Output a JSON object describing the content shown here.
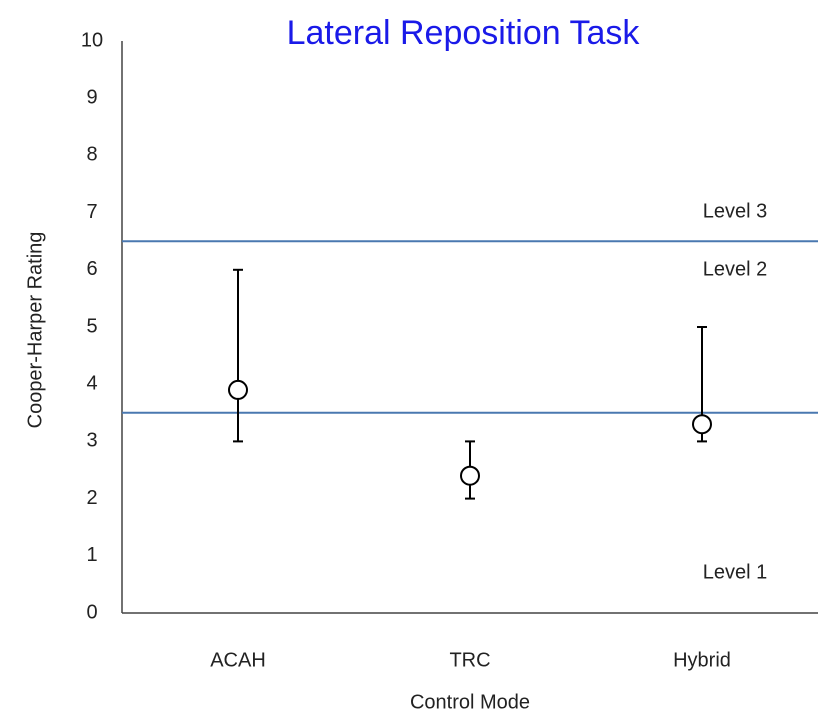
{
  "chart_data": {
    "type": "errorbar",
    "title": "Lateral Reposition Task",
    "x_label": "Control Mode",
    "y_label": "Cooper-Harper Rating",
    "categories": [
      "ACAH",
      "TRC",
      "Hybrid"
    ],
    "series": [
      {
        "values": [
          3.9,
          2.4,
          3.3
        ],
        "low": [
          3,
          2,
          3
        ],
        "high": [
          6,
          3,
          5
        ],
        "color": "#000000"
      }
    ],
    "ylim": [
      0,
      10
    ],
    "yticks": [
      0,
      1,
      2,
      3,
      4,
      5,
      6,
      7,
      8,
      9,
      10
    ],
    "grid": false,
    "reference_lines": [
      {
        "value": 6.5,
        "color": "#4a78b0"
      },
      {
        "value": 3.5,
        "color": "#4a78b0"
      }
    ],
    "annotations": [
      "Level 3",
      "Level 2",
      "Level 1"
    ]
  }
}
